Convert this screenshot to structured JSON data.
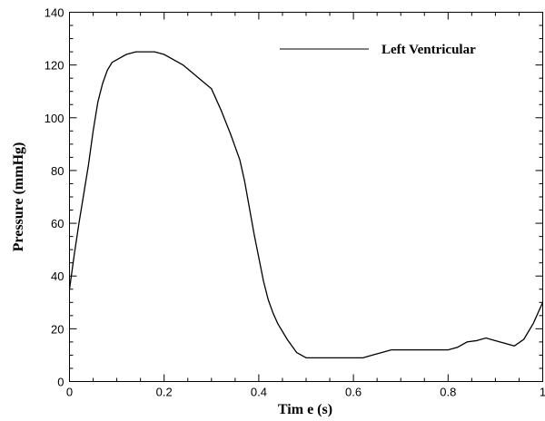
{
  "chart_data": {
    "type": "line",
    "title": "",
    "xlabel": "Tim e (s)",
    "ylabel": "Pressure (mmHg)",
    "xlim": [
      0,
      1
    ],
    "ylim": [
      0,
      140
    ],
    "x_ticks": [
      0,
      0.2,
      0.4,
      0.6,
      0.8,
      1
    ],
    "x_tick_labels": [
      "0",
      "0.2",
      "0.4",
      "0.6",
      "0.8",
      "1"
    ],
    "y_ticks": [
      0,
      20,
      40,
      60,
      80,
      100,
      120,
      140
    ],
    "y_tick_labels": [
      "0",
      "20",
      "40",
      "60",
      "80",
      "100",
      "120",
      "140"
    ],
    "grid": false,
    "legend": {
      "position": "top-right",
      "entries": [
        "Left Ventricular"
      ]
    },
    "series": [
      {
        "name": "Left Ventricular",
        "color": "#000000",
        "x": [
          0,
          0.01,
          0.02,
          0.03,
          0.04,
          0.05,
          0.06,
          0.07,
          0.08,
          0.09,
          0.1,
          0.12,
          0.14,
          0.16,
          0.18,
          0.2,
          0.22,
          0.24,
          0.26,
          0.28,
          0.3,
          0.32,
          0.34,
          0.36,
          0.37,
          0.38,
          0.39,
          0.4,
          0.41,
          0.42,
          0.43,
          0.44,
          0.46,
          0.48,
          0.5,
          0.52,
          0.54,
          0.56,
          0.58,
          0.6,
          0.62,
          0.63,
          0.64,
          0.66,
          0.68,
          0.7,
          0.72,
          0.74,
          0.76,
          0.78,
          0.8,
          0.82,
          0.84,
          0.86,
          0.88,
          0.9,
          0.92,
          0.94,
          0.96,
          0.98,
          1.0
        ],
        "y": [
          35,
          48,
          60,
          71,
          82,
          95,
          106,
          113,
          118,
          121,
          122,
          124,
          125,
          125,
          125,
          124,
          122,
          120,
          117,
          114,
          111,
          103,
          94,
          84,
          76,
          66,
          56,
          47,
          38,
          31,
          26,
          22,
          16,
          11,
          9,
          9,
          9,
          9,
          9,
          9,
          9,
          9.5,
          10,
          11,
          12,
          12,
          12,
          12,
          12,
          12,
          12,
          13,
          15,
          15.5,
          16.5,
          15.5,
          14.5,
          13.5,
          16,
          22,
          30
        ]
      }
    ]
  }
}
